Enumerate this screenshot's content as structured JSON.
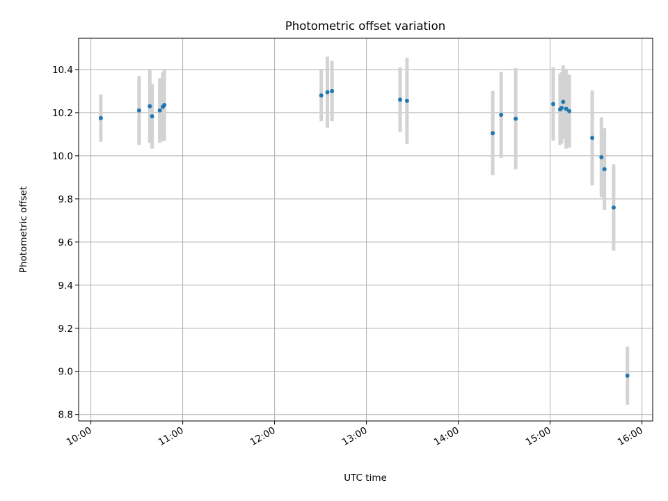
{
  "chart_data": {
    "type": "scatter",
    "title": "Photometric offset variation",
    "xlabel": "UTC time",
    "ylabel": "Photometric offset",
    "x_axis_type": "time",
    "xlim": [
      "09:52",
      "16:07"
    ],
    "ylim": [
      8.77,
      10.545
    ],
    "x_ticks": [
      "10:00",
      "11:00",
      "12:00",
      "13:00",
      "14:00",
      "15:00",
      "16:00"
    ],
    "y_ticks": [
      8.8,
      9.0,
      9.2,
      9.4,
      9.6,
      9.8,
      10.0,
      10.2,
      10.4
    ],
    "y_tick_labels": [
      "8.8",
      "9.0",
      "9.2",
      "9.4",
      "9.6",
      "9.8",
      "10.0",
      "10.2",
      "10.4"
    ],
    "grid": true,
    "point_color": "#1f77b4",
    "errorbar_color": "#d3d3d3",
    "points": [
      {
        "time": "10:06:30",
        "value": 10.175,
        "err": 0.11
      },
      {
        "time": "10:31:30",
        "value": 10.21,
        "err": 0.16
      },
      {
        "time": "10:38:30",
        "value": 10.23,
        "err": 0.17
      },
      {
        "time": "10:40:00",
        "value": 10.183,
        "err": 0.15
      },
      {
        "time": "10:45:00",
        "value": 10.21,
        "err": 0.15
      },
      {
        "time": "10:47:00",
        "value": 10.227,
        "err": 0.16
      },
      {
        "time": "10:48:00",
        "value": 10.235,
        "err": 0.165
      },
      {
        "time": "12:30:30",
        "value": 10.28,
        "err": 0.12
      },
      {
        "time": "12:34:30",
        "value": 10.295,
        "err": 0.165
      },
      {
        "time": "12:37:30",
        "value": 10.3,
        "err": 0.14
      },
      {
        "time": "13:22:00",
        "value": 10.26,
        "err": 0.15
      },
      {
        "time": "13:26:30",
        "value": 10.255,
        "err": 0.2
      },
      {
        "time": "14:22:30",
        "value": 10.105,
        "err": 0.195
      },
      {
        "time": "14:28:00",
        "value": 10.19,
        "err": 0.2
      },
      {
        "time": "14:37:30",
        "value": 10.172,
        "err": 0.235
      },
      {
        "time": "15:02:00",
        "value": 10.24,
        "err": 0.17
      },
      {
        "time": "15:06:30",
        "value": 10.215,
        "err": 0.165
      },
      {
        "time": "15:07:30",
        "value": 10.222,
        "err": 0.165
      },
      {
        "time": "15:08:30",
        "value": 10.25,
        "err": 0.17
      },
      {
        "time": "15:10:30",
        "value": 10.218,
        "err": 0.185
      },
      {
        "time": "15:12:30",
        "value": 10.207,
        "err": 0.17
      },
      {
        "time": "15:27:30",
        "value": 10.083,
        "err": 0.22
      },
      {
        "time": "15:33:30",
        "value": 9.993,
        "err": 0.185
      },
      {
        "time": "15:35:30",
        "value": 9.938,
        "err": 0.19
      },
      {
        "time": "15:41:30",
        "value": 9.76,
        "err": 0.2
      },
      {
        "time": "15:50:30",
        "value": 8.98,
        "err": 0.135
      }
    ]
  }
}
